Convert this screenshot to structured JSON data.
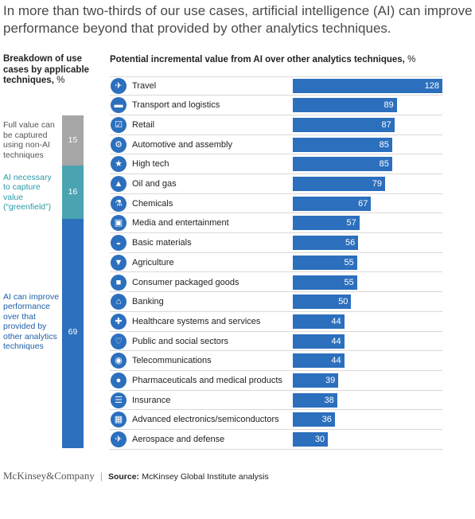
{
  "title": "In more than two-thirds of our use cases, artificial intelligence (AI) can improve performance beyond that provided by other analytics techniques.",
  "left_header": {
    "title": "Breakdown of use cases by applicable techniques,",
    "unit": "%"
  },
  "right_header": {
    "title": "Potential incremental value from AI over other analytics techniques,",
    "unit": "%"
  },
  "stack": {
    "segments": [
      {
        "label": "Full value can be captured using non-AI techniques",
        "value": 15,
        "color": "#a6a6a6",
        "text_color": "#555555"
      },
      {
        "label": "AI necessary to capture value (“greenfield”)",
        "value": 16,
        "color": "#4aa3b0",
        "text_color": "#2a9aa8"
      },
      {
        "label": "AI can improve performance over that provided by other analytics techniques",
        "value": 69,
        "color": "#2c6fbd",
        "text_color": "#1f5fa8"
      }
    ]
  },
  "chart_data": {
    "type": "bar",
    "orientation": "horizontal",
    "bar_color": "#2c6fbd",
    "categories": [
      {
        "label": "Travel",
        "value": 128,
        "icon": "airplane-icon",
        "glyph": "✈"
      },
      {
        "label": "Transport and logistics",
        "value": 89,
        "icon": "truck-icon",
        "glyph": "▬"
      },
      {
        "label": "Retail",
        "value": 87,
        "icon": "shopping-cart-icon",
        "glyph": "☑"
      },
      {
        "label": "Automotive and assembly",
        "value": 85,
        "icon": "automotive-icon",
        "glyph": "⚙"
      },
      {
        "label": "High tech",
        "value": 85,
        "icon": "satellite-icon",
        "glyph": "★"
      },
      {
        "label": "Oil and gas",
        "value": 79,
        "icon": "oil-pump-icon",
        "glyph": "▲"
      },
      {
        "label": "Chemicals",
        "value": 67,
        "icon": "flask-icon",
        "glyph": "⚗"
      },
      {
        "label": "Media and entertainment",
        "value": 57,
        "icon": "film-icon",
        "glyph": "▣"
      },
      {
        "label": "Basic materials",
        "value": 56,
        "icon": "hard-hat-icon",
        "glyph": "◒"
      },
      {
        "label": "Agriculture",
        "value": 55,
        "icon": "cow-icon",
        "glyph": "▼"
      },
      {
        "label": "Consumer packaged goods",
        "value": 55,
        "icon": "package-icon",
        "glyph": "■"
      },
      {
        "label": "Banking",
        "value": 50,
        "icon": "bank-icon",
        "glyph": "⌂"
      },
      {
        "label": "Healthcare systems and services",
        "value": 44,
        "icon": "medical-icon",
        "glyph": "✚"
      },
      {
        "label": "Public and social sectors",
        "value": 44,
        "icon": "handshake-icon",
        "glyph": "♡"
      },
      {
        "label": "Telecommunications",
        "value": 44,
        "icon": "antenna-icon",
        "glyph": "◉"
      },
      {
        "label": "Pharmaceuticals and medical products",
        "value": 39,
        "icon": "pill-icon",
        "glyph": "●"
      },
      {
        "label": "Insurance",
        "value": 38,
        "icon": "document-icon",
        "glyph": "☰"
      },
      {
        "label": "Advanced electronics/semiconductors",
        "value": 36,
        "icon": "chip-icon",
        "glyph": "▦"
      },
      {
        "label": "Aerospace and defense",
        "value": 30,
        "icon": "aircraft-icon",
        "glyph": "✈"
      }
    ],
    "xlim": [
      0,
      128
    ]
  },
  "footer": {
    "brand": "McKinsey&Company",
    "source_label": "Source:",
    "source": "McKinsey Global Institute analysis"
  }
}
